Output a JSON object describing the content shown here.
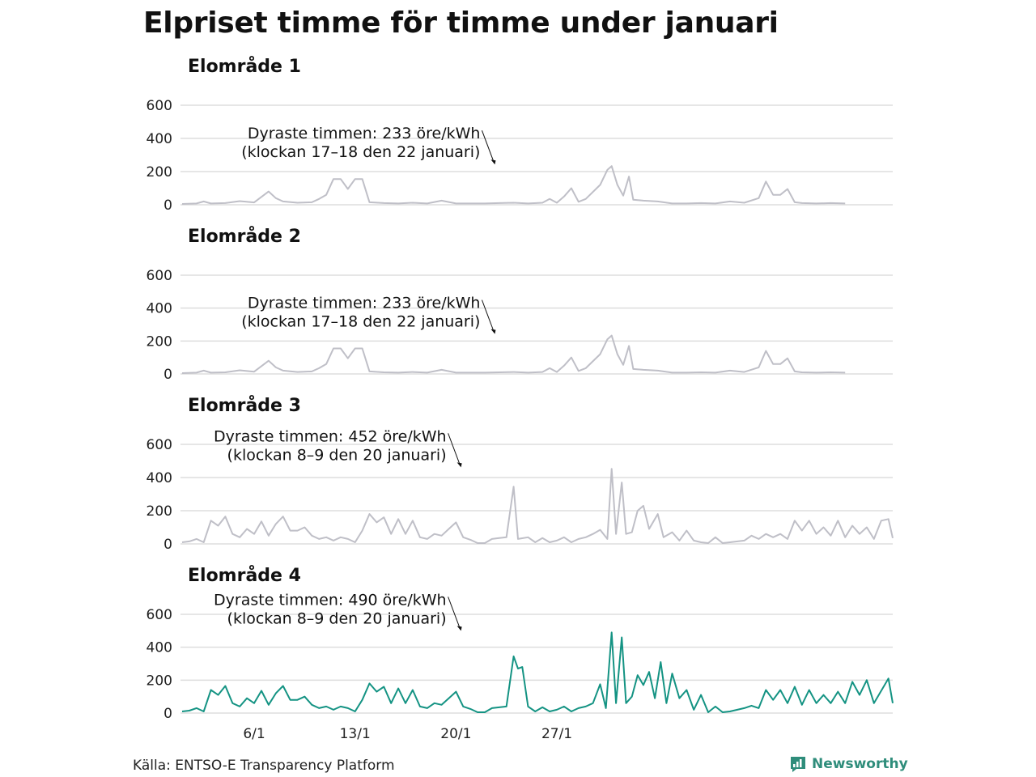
{
  "title": "Elpriset timme för timme under januari",
  "source": "Källa: ENTSO-E Transparency Platform",
  "brand": {
    "name": "Newsworthy",
    "icon": "newsworthy-chart-icon",
    "color": "#2f8d7b"
  },
  "colors": {
    "grey_series": "#bfbfc7",
    "teal_series": "#149383",
    "grid": "#dddddd"
  },
  "chart_data": [
    {
      "type": "line",
      "title": "Elområde 1",
      "ylim": [
        0,
        600
      ],
      "yticks": [
        0,
        200,
        400,
        600
      ],
      "color": "grey",
      "annotation": {
        "lines": [
          "Dyraste timmen: 233 öre/kWh",
          "(klockan 17–18 den 22 januari)"
        ],
        "day": 22.7,
        "value": 233
      },
      "points": [
        [
          1,
          5
        ],
        [
          2,
          8
        ],
        [
          2.5,
          20
        ],
        [
          3,
          8
        ],
        [
          4,
          10
        ],
        [
          5,
          22
        ],
        [
          6,
          14
        ],
        [
          7,
          80
        ],
        [
          7.5,
          40
        ],
        [
          8,
          20
        ],
        [
          9,
          12
        ],
        [
          10,
          15
        ],
        [
          10.5,
          35
        ],
        [
          11,
          60
        ],
        [
          11.5,
          155
        ],
        [
          12,
          155
        ],
        [
          12.5,
          95
        ],
        [
          13,
          155
        ],
        [
          13.5,
          155
        ],
        [
          14,
          15
        ],
        [
          15,
          10
        ],
        [
          16,
          8
        ],
        [
          17,
          12
        ],
        [
          18,
          8
        ],
        [
          19,
          25
        ],
        [
          20,
          8
        ],
        [
          22,
          8
        ],
        [
          23,
          10
        ],
        [
          24,
          12
        ],
        [
          25,
          8
        ],
        [
          26,
          12
        ],
        [
          26.5,
          35
        ],
        [
          27,
          12
        ],
        [
          27.5,
          50
        ],
        [
          28,
          100
        ],
        [
          28.5,
          18
        ],
        [
          29,
          35
        ],
        [
          30,
          120
        ],
        [
          30.5,
          210
        ],
        [
          30.8,
          233
        ],
        [
          31.2,
          120
        ],
        [
          31.6,
          55
        ],
        [
          32,
          170
        ],
        [
          32.3,
          30
        ],
        [
          33,
          25
        ],
        [
          34,
          20
        ],
        [
          35,
          8
        ],
        [
          36,
          8
        ],
        [
          37,
          10
        ],
        [
          38,
          8
        ],
        [
          39,
          20
        ],
        [
          40,
          12
        ],
        [
          41,
          40
        ],
        [
          41.5,
          140
        ],
        [
          42,
          60
        ],
        [
          42.5,
          60
        ],
        [
          43,
          95
        ],
        [
          43.5,
          15
        ],
        [
          44,
          10
        ],
        [
          45,
          8
        ],
        [
          46,
          10
        ],
        [
          47,
          8
        ]
      ]
    },
    {
      "type": "line",
      "title": "Elområde 2",
      "ylim": [
        0,
        600
      ],
      "yticks": [
        0,
        200,
        400,
        600
      ],
      "color": "grey",
      "annotation": {
        "lines": [
          "Dyraste timmen: 233 öre/kWh",
          "(klockan 17–18 den 22 januari)"
        ],
        "day": 22.7,
        "value": 233
      },
      "points": [
        [
          1,
          5
        ],
        [
          2,
          8
        ],
        [
          2.5,
          20
        ],
        [
          3,
          8
        ],
        [
          4,
          10
        ],
        [
          5,
          22
        ],
        [
          6,
          14
        ],
        [
          7,
          80
        ],
        [
          7.5,
          40
        ],
        [
          8,
          20
        ],
        [
          9,
          12
        ],
        [
          10,
          15
        ],
        [
          10.5,
          35
        ],
        [
          11,
          60
        ],
        [
          11.5,
          155
        ],
        [
          12,
          155
        ],
        [
          12.5,
          95
        ],
        [
          13,
          155
        ],
        [
          13.5,
          155
        ],
        [
          14,
          15
        ],
        [
          15,
          10
        ],
        [
          16,
          8
        ],
        [
          17,
          12
        ],
        [
          18,
          8
        ],
        [
          19,
          25
        ],
        [
          20,
          8
        ],
        [
          22,
          8
        ],
        [
          23,
          10
        ],
        [
          24,
          12
        ],
        [
          25,
          8
        ],
        [
          26,
          12
        ],
        [
          26.5,
          35
        ],
        [
          27,
          12
        ],
        [
          27.5,
          50
        ],
        [
          28,
          100
        ],
        [
          28.5,
          18
        ],
        [
          29,
          35
        ],
        [
          30,
          120
        ],
        [
          30.5,
          210
        ],
        [
          30.8,
          233
        ],
        [
          31.2,
          120
        ],
        [
          31.6,
          55
        ],
        [
          32,
          170
        ],
        [
          32.3,
          30
        ],
        [
          33,
          25
        ],
        [
          34,
          20
        ],
        [
          35,
          8
        ],
        [
          36,
          8
        ],
        [
          37,
          10
        ],
        [
          38,
          8
        ],
        [
          39,
          20
        ],
        [
          40,
          12
        ],
        [
          41,
          40
        ],
        [
          41.5,
          140
        ],
        [
          42,
          60
        ],
        [
          42.5,
          60
        ],
        [
          43,
          95
        ],
        [
          43.5,
          15
        ],
        [
          44,
          10
        ],
        [
          45,
          8
        ],
        [
          46,
          10
        ],
        [
          47,
          8
        ]
      ]
    },
    {
      "type": "line",
      "title": "Elområde 3",
      "ylim": [
        0,
        600
      ],
      "yticks": [
        0,
        200,
        400,
        600
      ],
      "color": "grey",
      "annotation": {
        "lines": [
          "Dyraste timmen: 452 öre/kWh",
          "(klockan 8–9 den 20 januari)"
        ],
        "day": 20.35,
        "value": 452
      },
      "points": [
        [
          1,
          10
        ],
        [
          1.5,
          15
        ],
        [
          2,
          30
        ],
        [
          2.5,
          10
        ],
        [
          3,
          140
        ],
        [
          3.5,
          110
        ],
        [
          4,
          165
        ],
        [
          4.5,
          60
        ],
        [
          5,
          40
        ],
        [
          5.5,
          90
        ],
        [
          6,
          60
        ],
        [
          6.5,
          135
        ],
        [
          7,
          50
        ],
        [
          7.5,
          120
        ],
        [
          8,
          165
        ],
        [
          8.5,
          80
        ],
        [
          9,
          80
        ],
        [
          9.5,
          100
        ],
        [
          10,
          50
        ],
        [
          10.5,
          30
        ],
        [
          11,
          40
        ],
        [
          11.5,
          20
        ],
        [
          12,
          40
        ],
        [
          12.5,
          30
        ],
        [
          13,
          10
        ],
        [
          13.5,
          80
        ],
        [
          14,
          180
        ],
        [
          14.5,
          130
        ],
        [
          15,
          160
        ],
        [
          15.5,
          60
        ],
        [
          16,
          150
        ],
        [
          16.5,
          60
        ],
        [
          17,
          140
        ],
        [
          17.5,
          40
        ],
        [
          18,
          30
        ],
        [
          18.5,
          60
        ],
        [
          19,
          50
        ],
        [
          19.5,
          90
        ],
        [
          20,
          130
        ],
        [
          20.5,
          40
        ],
        [
          21,
          25
        ],
        [
          21.5,
          5
        ],
        [
          22,
          5
        ],
        [
          22.5,
          30
        ],
        [
          23,
          35
        ],
        [
          23.5,
          40
        ],
        [
          24,
          345
        ],
        [
          24.3,
          30
        ],
        [
          25,
          40
        ],
        [
          25.5,
          10
        ],
        [
          26,
          35
        ],
        [
          26.5,
          10
        ],
        [
          27,
          20
        ],
        [
          27.5,
          40
        ],
        [
          28,
          10
        ],
        [
          28.5,
          30
        ],
        [
          29,
          40
        ],
        [
          29.5,
          60
        ],
        [
          30,
          85
        ],
        [
          30.5,
          30
        ],
        [
          30.8,
          452
        ],
        [
          31.1,
          60
        ],
        [
          31.5,
          370
        ],
        [
          31.8,
          60
        ],
        [
          32.2,
          70
        ],
        [
          32.6,
          200
        ],
        [
          33,
          230
        ],
        [
          33.4,
          90
        ],
        [
          34,
          180
        ],
        [
          34.4,
          40
        ],
        [
          35,
          70
        ],
        [
          35.5,
          20
        ],
        [
          36,
          80
        ],
        [
          36.5,
          20
        ],
        [
          37,
          10
        ],
        [
          37.5,
          5
        ],
        [
          38,
          40
        ],
        [
          38.5,
          5
        ],
        [
          39,
          10
        ],
        [
          40,
          20
        ],
        [
          40.5,
          50
        ],
        [
          41,
          30
        ],
        [
          41.5,
          60
        ],
        [
          42,
          40
        ],
        [
          42.5,
          60
        ],
        [
          43,
          30
        ],
        [
          43.5,
          140
        ],
        [
          44,
          80
        ],
        [
          44.5,
          140
        ],
        [
          45,
          60
        ],
        [
          45.5,
          100
        ],
        [
          46,
          50
        ],
        [
          46.5,
          140
        ],
        [
          47,
          40
        ],
        [
          47.5,
          110
        ],
        [
          48,
          60
        ],
        [
          48.5,
          100
        ],
        [
          49,
          30
        ],
        [
          49.5,
          140
        ],
        [
          50,
          150
        ],
        [
          50.3,
          35
        ]
      ]
    },
    {
      "type": "line",
      "title": "Elområde 4",
      "ylim": [
        0,
        600
      ],
      "yticks": [
        0,
        200,
        400,
        600
      ],
      "color": "teal",
      "annotation": {
        "lines": [
          "Dyraste timmen: 490 öre/kWh",
          "(klockan 8–9 den 20 januari)"
        ],
        "day": 20.35,
        "value": 490
      },
      "points": [
        [
          1,
          10
        ],
        [
          1.5,
          15
        ],
        [
          2,
          30
        ],
        [
          2.5,
          10
        ],
        [
          3,
          140
        ],
        [
          3.5,
          110
        ],
        [
          4,
          165
        ],
        [
          4.5,
          60
        ],
        [
          5,
          40
        ],
        [
          5.5,
          90
        ],
        [
          6,
          60
        ],
        [
          6.5,
          135
        ],
        [
          7,
          50
        ],
        [
          7.5,
          120
        ],
        [
          8,
          165
        ],
        [
          8.5,
          80
        ],
        [
          9,
          80
        ],
        [
          9.5,
          100
        ],
        [
          10,
          50
        ],
        [
          10.5,
          30
        ],
        [
          11,
          40
        ],
        [
          11.5,
          20
        ],
        [
          12,
          40
        ],
        [
          12.5,
          30
        ],
        [
          13,
          10
        ],
        [
          13.5,
          80
        ],
        [
          14,
          180
        ],
        [
          14.5,
          130
        ],
        [
          15,
          160
        ],
        [
          15.5,
          60
        ],
        [
          16,
          150
        ],
        [
          16.5,
          60
        ],
        [
          17,
          140
        ],
        [
          17.5,
          40
        ],
        [
          18,
          30
        ],
        [
          18.5,
          60
        ],
        [
          19,
          50
        ],
        [
          19.5,
          90
        ],
        [
          20,
          130
        ],
        [
          20.5,
          40
        ],
        [
          21,
          25
        ],
        [
          21.5,
          5
        ],
        [
          22,
          5
        ],
        [
          22.5,
          30
        ],
        [
          23,
          35
        ],
        [
          23.5,
          40
        ],
        [
          24,
          345
        ],
        [
          24.3,
          270
        ],
        [
          24.6,
          280
        ],
        [
          25,
          40
        ],
        [
          25.5,
          10
        ],
        [
          26,
          35
        ],
        [
          26.5,
          10
        ],
        [
          27,
          20
        ],
        [
          27.5,
          40
        ],
        [
          28,
          10
        ],
        [
          28.5,
          30
        ],
        [
          29,
          40
        ],
        [
          29.5,
          60
        ],
        [
          30,
          175
        ],
        [
          30.4,
          30
        ],
        [
          30.8,
          490
        ],
        [
          31.1,
          60
        ],
        [
          31.5,
          460
        ],
        [
          31.8,
          60
        ],
        [
          32.2,
          100
        ],
        [
          32.6,
          230
        ],
        [
          33,
          170
        ],
        [
          33.4,
          250
        ],
        [
          33.8,
          90
        ],
        [
          34.2,
          310
        ],
        [
          34.6,
          60
        ],
        [
          35,
          240
        ],
        [
          35.5,
          90
        ],
        [
          36,
          140
        ],
        [
          36.5,
          20
        ],
        [
          37,
          110
        ],
        [
          37.5,
          5
        ],
        [
          38,
          40
        ],
        [
          38.5,
          5
        ],
        [
          39,
          10
        ],
        [
          40,
          30
        ],
        [
          40.5,
          45
        ],
        [
          41,
          30
        ],
        [
          41.5,
          140
        ],
        [
          42,
          80
        ],
        [
          42.5,
          140
        ],
        [
          43,
          60
        ],
        [
          43.5,
          160
        ],
        [
          44,
          50
        ],
        [
          44.5,
          140
        ],
        [
          45,
          60
        ],
        [
          45.5,
          110
        ],
        [
          46,
          60
        ],
        [
          46.5,
          130
        ],
        [
          47,
          60
        ],
        [
          47.5,
          190
        ],
        [
          48,
          110
        ],
        [
          48.5,
          200
        ],
        [
          49,
          60
        ],
        [
          50,
          210
        ],
        [
          50.3,
          60
        ]
      ]
    }
  ],
  "x_axis": {
    "ticks": [
      "6/1",
      "13/1",
      "20/1",
      "27/1"
    ],
    "tick_days": [
      6,
      13,
      20,
      27
    ]
  }
}
